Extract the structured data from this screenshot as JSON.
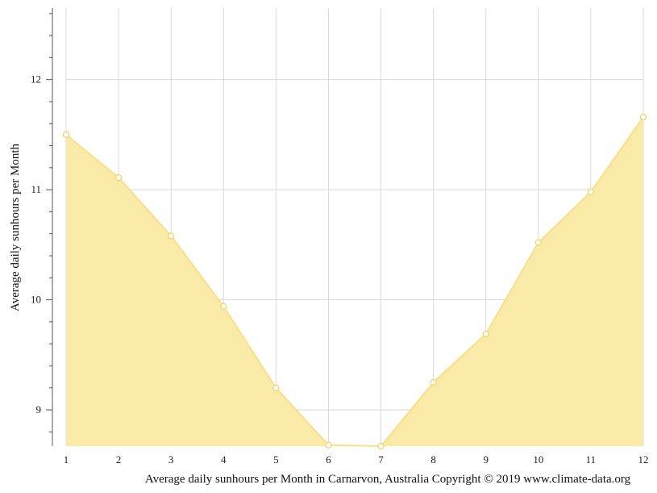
{
  "chart_data": {
    "type": "area",
    "xlabel": "Average daily sunhours per Month in Carnarvon, Australia Copyright © 2019 www.climate-data.org",
    "ylabel": "Average daily sunhours per Month",
    "x": [
      1,
      2,
      3,
      4,
      5,
      6,
      7,
      8,
      9,
      10,
      11,
      12
    ],
    "series": [
      {
        "values": [
          11.5,
          11.11,
          10.58,
          9.94,
          9.2,
          8.68,
          8.67,
          9.25,
          9.69,
          10.52,
          10.98,
          11.66
        ]
      }
    ],
    "xlim": [
      1,
      12
    ],
    "ylim": [
      8.67,
      12.65
    ],
    "yticks": [
      9,
      10,
      11,
      12
    ],
    "grid": true,
    "colors": {
      "fill": "#f9eaa8",
      "line": "#f7e08a",
      "point_stroke": "#f0d360"
    }
  }
}
